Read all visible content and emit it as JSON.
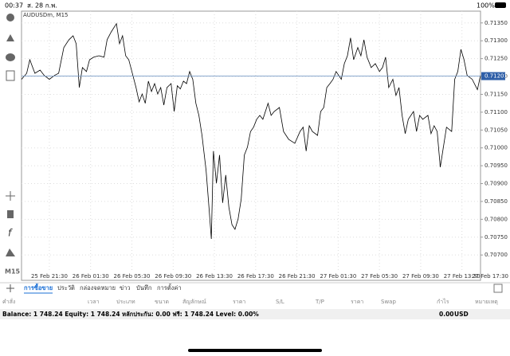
{
  "status_bar": {
    "time": "00:37",
    "date": "ส. 28 ก.พ.",
    "battery": "100%"
  },
  "toolbar": {
    "timeframe": "M15"
  },
  "chart_data": {
    "type": "line",
    "title": "AUDUSDm, M15",
    "x": [
      -2.7,
      -2.2,
      -1.9,
      -1.4,
      -0.9,
      -0.5,
      0,
      0.5,
      0.9,
      1.4,
      1.9,
      2.3,
      2.6,
      2.9,
      3.2,
      3.6,
      3.9,
      4.3,
      4.8,
      5.3,
      5.6,
      6.0,
      6.5,
      6.8,
      7.1,
      7.4,
      7.7,
      8.0,
      8.4,
      8.7,
      9.0,
      9.3,
      9.6,
      9.9,
      10.2,
      10.5,
      10.8,
      11.1,
      11.4,
      11.8,
      12.1,
      12.4,
      12.7,
      13.0,
      13.3,
      13.6,
      13.9,
      14.2,
      14.5,
      14.8,
      15.2,
      15.5,
      15.7,
      15.9,
      16.2,
      16.5,
      16.8,
      17.1,
      17.4,
      17.7,
      18.0,
      18.3,
      18.6,
      18.9,
      19.2,
      19.5,
      19.8,
      20.1,
      20.4,
      20.7,
      21.2,
      21.5,
      21.8,
      22.3,
      22.7,
      23.2,
      23.8,
      24.3,
      24.6,
      24.9,
      25.2,
      25.5,
      26.0,
      26.3,
      26.6,
      26.9,
      27.2,
      27.5,
      27.8,
      28.3,
      28.6,
      28.9,
      29.2,
      29.5,
      29.9,
      30.2,
      30.5,
      30.8,
      31.2,
      31.6,
      32.0,
      32.3,
      32.6,
      32.9,
      33.3,
      33.6,
      33.9,
      34.2,
      34.5,
      34.8,
      35.3,
      35.6,
      35.9,
      36.2,
      36.7,
      37.0,
      37.3,
      37.6,
      37.9,
      38.2,
      38.5,
      39.0,
      39.3,
      39.6,
      39.9,
      40.2,
      40.5,
      41.0,
      41.5,
      41.8
    ],
    "series": [
      {
        "color": "#000000",
        "values": [
          0.71192,
          0.71209,
          0.71247,
          0.71209,
          0.71218,
          0.71203,
          0.71192,
          0.71203,
          0.71209,
          0.71281,
          0.71303,
          0.71314,
          0.71292,
          0.71169,
          0.71225,
          0.71214,
          0.71247,
          0.71254,
          0.71258,
          0.71254,
          0.71303,
          0.71325,
          0.71348,
          0.71292,
          0.71314,
          0.71258,
          0.71247,
          0.71214,
          0.71169,
          0.71129,
          0.71151,
          0.71125,
          0.71187,
          0.71158,
          0.7118,
          0.71151,
          0.71169,
          0.7112,
          0.71169,
          0.7118,
          0.71102,
          0.71174,
          0.71165,
          0.71187,
          0.7118,
          0.71214,
          0.71192,
          0.71125,
          0.71091,
          0.71035,
          0.70935,
          0.70823,
          0.70745,
          0.70991,
          0.70901,
          0.7098,
          0.70846,
          0.70924,
          0.70834,
          0.70785,
          0.70772,
          0.70801,
          0.70857,
          0.7098,
          0.71002,
          0.71046,
          0.71058,
          0.7108,
          0.71091,
          0.7108,
          0.71125,
          0.71091,
          0.71102,
          0.71113,
          0.71046,
          0.71024,
          0.71013,
          0.71046,
          0.71058,
          0.70991,
          0.71062,
          0.71046,
          0.71035,
          0.71102,
          0.71113,
          0.71169,
          0.7118,
          0.71192,
          0.71214,
          0.71192,
          0.71236,
          0.71258,
          0.71308,
          0.71247,
          0.71281,
          0.71258,
          0.71303,
          0.71254,
          0.71225,
          0.71236,
          0.71214,
          0.71225,
          0.71254,
          0.71169,
          0.71192,
          0.71147,
          0.71169,
          0.71091,
          0.7104,
          0.7108,
          0.71102,
          0.71046,
          0.71091,
          0.7108,
          0.71091,
          0.7104,
          0.71062,
          0.71046,
          0.70946,
          0.71002,
          0.71058,
          0.71046,
          0.71192,
          0.71214,
          0.71276,
          0.71247,
          0.71203,
          0.71192,
          0.71163,
          0.71203
        ]
      }
    ],
    "xlim": [
      -2.7,
      41.8
    ],
    "ylim": [
      0.70629,
      0.71383
    ],
    "xticks": [
      {
        "value": 0,
        "label": "25 Feb 21:30"
      },
      {
        "value": 4,
        "label": "26 Feb 01:30"
      },
      {
        "value": 8,
        "label": "26 Feb 05:30"
      },
      {
        "value": 12,
        "label": "26 Feb 09:30"
      },
      {
        "value": 16,
        "label": "26 Feb 13:30"
      },
      {
        "value": 20,
        "label": "26 Feb 17:30"
      },
      {
        "value": 24,
        "label": "26 Feb 21:30"
      },
      {
        "value": 28,
        "label": "27 Feb 01:30"
      },
      {
        "value": 32,
        "label": "27 Feb 05:30"
      },
      {
        "value": 36,
        "label": "27 Feb 09:30"
      },
      {
        "value": 40,
        "label": "27 Feb 13:30"
      },
      {
        "value": 44,
        "label": "27 Feb 17:30"
      }
    ],
    "yticks": [
      {
        "value": 0.7135,
        "label": "0.71350"
      },
      {
        "value": 0.713,
        "label": "0.71300"
      },
      {
        "value": 0.7125,
        "label": "0.71250"
      },
      {
        "value": 0.712,
        "label": "0.71200"
      },
      {
        "value": 0.7115,
        "label": "0.71150"
      },
      {
        "value": 0.711,
        "label": "0.71100"
      },
      {
        "value": 0.7105,
        "label": "0.71050"
      },
      {
        "value": 0.71,
        "label": "0.71000"
      },
      {
        "value": 0.7095,
        "label": "0.70950"
      },
      {
        "value": 0.709,
        "label": "0.70900"
      },
      {
        "value": 0.7085,
        "label": "0.70850"
      },
      {
        "value": 0.708,
        "label": "0.70800"
      },
      {
        "value": 0.7075,
        "label": "0.70750"
      },
      {
        "value": 0.707,
        "label": "0.70700"
      }
    ],
    "current_price": {
      "value": 0.71201,
      "label": "0.71201"
    },
    "grid": true
  },
  "tabs": [
    "การซื้อขาย",
    "ประวัติ",
    "กล่องจดหมาย",
    "ข่าว",
    "บันทึก",
    "การตั้งค่า"
  ],
  "columns": [
    "คำสั่ง",
    "เวลา",
    "ประเภท",
    "ขนาด",
    "สัญลักษณ์",
    "ราคา",
    "S/L",
    "T/P",
    "ราคา",
    "Swap",
    "กำไร",
    "หมายเหตุ"
  ],
  "account": {
    "summary": "Balance: 1 748.24 Equity: 1 748.24 หลักประกัน: 0.00 ฟรี: 1 748.24 Level: 0.00%",
    "profit": "0.00",
    "currency": "USD"
  }
}
